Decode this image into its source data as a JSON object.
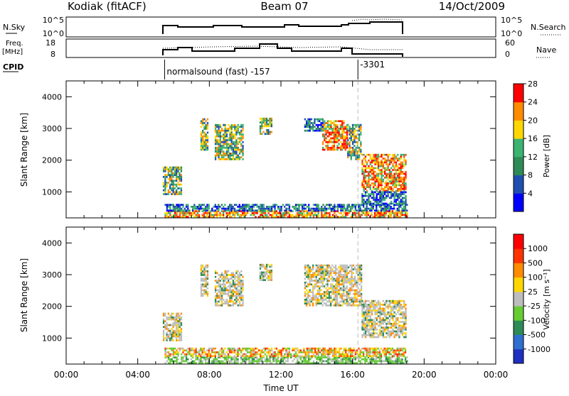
{
  "header": {
    "radar": "Kodiak (fitACF)",
    "beam": "Beam 07",
    "date": "14/Oct/2009"
  },
  "noise_panel": {
    "left_label": "N.Sky",
    "left_ticks": [
      "10^5",
      "10^0"
    ],
    "right_ticks": [
      "10^5",
      "10^0"
    ],
    "right_label": "N.Search"
  },
  "freq_panel": {
    "left_label_1": "Freq.",
    "left_label_2": "[MHz]",
    "left_ticks": [
      "18",
      "8"
    ],
    "right_ticks": [
      "60",
      "0"
    ],
    "right_label": "Nave"
  },
  "cpid": {
    "label": "CPID",
    "modes": [
      {
        "start_hour": 5.5,
        "text": "normalsound (fast) -157"
      },
      {
        "start_hour": 16.3,
        "text": "-3301"
      }
    ]
  },
  "chart_data": [
    {
      "type": "heatmap",
      "name": "power",
      "ylabel": "Slant Range [km]",
      "xlabel": "Time UT",
      "xlim": [
        0,
        24
      ],
      "ylim": [
        180,
        4500
      ],
      "x_ticks": [
        "00:00",
        "04:00",
        "08:00",
        "12:00",
        "16:00",
        "20:00",
        "00:00"
      ],
      "y_ticks": [
        1000,
        2000,
        3000,
        4000
      ],
      "colorbar_label": "Power [dB]",
      "colorbar_ticks": [
        "4",
        "8",
        "12",
        "16",
        "20",
        "24",
        "28"
      ],
      "colorbar_colors": [
        "#0000ff",
        "#1e4fb0",
        "#2e8b57",
        "#3cb371",
        "#ffd700",
        "#ff8c00",
        "#ff0000"
      ],
      "regions": [
        {
          "t0": 5.5,
          "t1": 19.0,
          "r0": 180,
          "r1": 380,
          "level": "high"
        },
        {
          "t0": 5.5,
          "t1": 19.0,
          "r0": 380,
          "r1": 600,
          "level": "low"
        },
        {
          "t0": 5.4,
          "t1": 6.4,
          "r0": 900,
          "r1": 1800,
          "level": "mid"
        },
        {
          "t0": 7.5,
          "t1": 7.9,
          "r0": 2300,
          "r1": 3300,
          "level": "mid"
        },
        {
          "t0": 8.3,
          "t1": 9.9,
          "r0": 2000,
          "r1": 3100,
          "level": "mid"
        },
        {
          "t0": 10.8,
          "t1": 11.5,
          "r0": 2800,
          "r1": 3300,
          "level": "mid"
        },
        {
          "t0": 13.3,
          "t1": 14.3,
          "r0": 2900,
          "r1": 3300,
          "level": "low"
        },
        {
          "t0": 14.3,
          "t1": 15.7,
          "r0": 2300,
          "r1": 3250,
          "level": "high"
        },
        {
          "t0": 15.7,
          "t1": 16.5,
          "r0": 2000,
          "r1": 3100,
          "level": "mid"
        },
        {
          "t0": 16.5,
          "t1": 19.0,
          "r0": 1000,
          "r1": 2200,
          "level": "high"
        },
        {
          "t0": 16.5,
          "t1": 19.0,
          "r0": 600,
          "r1": 1000,
          "level": "low"
        }
      ]
    },
    {
      "type": "heatmap",
      "name": "velocity",
      "ylabel": "Slant Range [km]",
      "xlabel": "Time UT",
      "xlim": [
        0,
        24
      ],
      "ylim": [
        180,
        4500
      ],
      "x_ticks": [
        "00:00",
        "04:00",
        "08:00",
        "12:00",
        "16:00",
        "20:00",
        "00:00"
      ],
      "y_ticks": [
        1000,
        2000,
        3000,
        4000
      ],
      "colorbar_label": "Velocity [m s⁻¹]",
      "colorbar_ticks": [
        "1000",
        "500",
        "100",
        "25",
        "-25",
        "-100",
        "-500",
        "-1000"
      ],
      "colorbar_colors": [
        "#1f2fbf",
        "#2e6fd0",
        "#2e8b57",
        "#66cc33",
        "#bdbdbd",
        "#ffd700",
        "#ff8c00",
        "#ff3300",
        "#ff0000"
      ],
      "regions": [
        {
          "t0": 5.5,
          "t1": 19.0,
          "r0": 180,
          "r1": 400,
          "level": "green"
        },
        {
          "t0": 5.5,
          "t1": 19.0,
          "r0": 400,
          "r1": 650,
          "level": "mixed"
        },
        {
          "t0": 5.4,
          "t1": 6.4,
          "r0": 900,
          "r1": 1800,
          "level": "gray"
        },
        {
          "t0": 7.5,
          "t1": 7.9,
          "r0": 2300,
          "r1": 3300,
          "level": "gray"
        },
        {
          "t0": 8.3,
          "t1": 9.9,
          "r0": 2000,
          "r1": 3100,
          "level": "gray"
        },
        {
          "t0": 10.8,
          "t1": 11.5,
          "r0": 2800,
          "r1": 3300,
          "level": "gray"
        },
        {
          "t0": 13.3,
          "t1": 16.5,
          "r0": 2000,
          "r1": 3300,
          "level": "gray"
        },
        {
          "t0": 16.5,
          "t1": 19.0,
          "r0": 1000,
          "r1": 2200,
          "level": "gray"
        }
      ]
    }
  ],
  "x_axis_title": "Time UT"
}
